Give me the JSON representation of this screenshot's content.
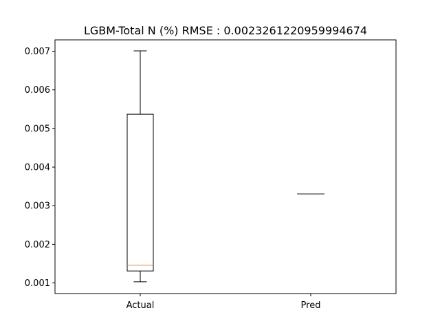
{
  "chart_data": {
    "type": "box",
    "title": "LGBM-Total N (%) RMSE : 0.0023261220959994674",
    "xlabel": "",
    "ylabel": "",
    "categories": [
      "Actual",
      "Pred"
    ],
    "boxes": [
      {
        "category": "Actual",
        "whisker_low": 0.00103,
        "q1": 0.00131,
        "median": 0.00146,
        "q3": 0.00537,
        "whisker_high": 0.00701
      },
      {
        "category": "Pred",
        "whisker_low": 0.003315,
        "q1": 0.003315,
        "median": 0.003315,
        "q3": 0.003315,
        "whisker_high": 0.003315
      }
    ],
    "ylim": [
      0.000725,
      0.007295
    ],
    "yticks": [
      0.001,
      0.002,
      0.003,
      0.004,
      0.005,
      0.006,
      0.007
    ],
    "ytick_labels": [
      "0.001",
      "0.002",
      "0.003",
      "0.004",
      "0.005",
      "0.006",
      "0.007"
    ],
    "grid": false,
    "colors": {
      "box": "#000000",
      "median": "#ff7f0e"
    }
  }
}
